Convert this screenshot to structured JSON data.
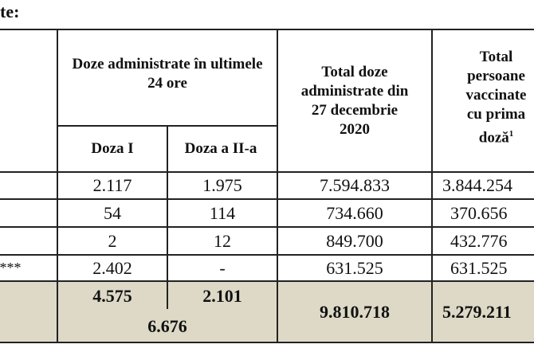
{
  "heading": "te:",
  "header": {
    "group": "Doze administrate în ultimele 24 ore",
    "dose1": "Doza I",
    "dose2": "Doza a II-a",
    "total_doses": "Total doze administrate din 27 decembrie 2020",
    "total_persons": "Total persoane vaccinate cu prima doză",
    "footnote_mark": "1"
  },
  "rows": [
    {
      "label": "",
      "dose1": "2.117",
      "dose2": "1.975",
      "total_doses": "7.594.833",
      "total_persons": "3.844.254"
    },
    {
      "label": "",
      "dose1": "54",
      "dose2": "114",
      "total_doses": "734.660",
      "total_persons": "370.656"
    },
    {
      "label": "",
      "dose1": "2",
      "dose2": "12",
      "total_doses": "849.700",
      "total_persons": "432.776"
    },
    {
      "label": "***",
      "dose1": "2.402",
      "dose2": "-",
      "total_doses": "631.525",
      "total_persons": "631.525"
    }
  ],
  "total": {
    "dose1": "4.575",
    "dose2": "2.101",
    "sum_24h": "6.676",
    "total_doses": "9.810.718",
    "total_persons": "5.279.211"
  },
  "colors": {
    "total_bg": "#ddd9c6"
  }
}
